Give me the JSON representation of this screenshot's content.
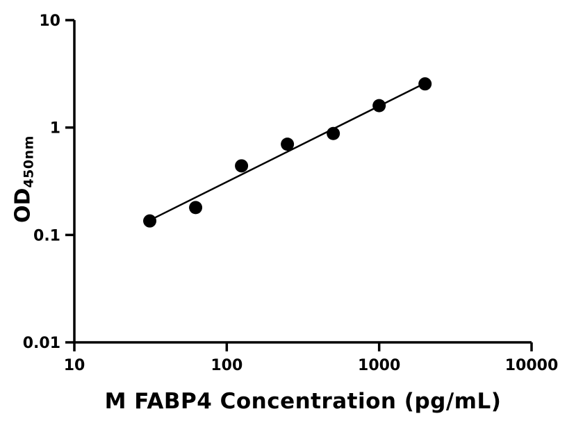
{
  "chart_data": {
    "type": "scatter",
    "title": "",
    "xlabel": "M FABP4 Concentration (pg/mL)",
    "ylabel_main": "OD",
    "ylabel_sub": "450nm",
    "x_scale": "log",
    "y_scale": "log",
    "xlim": [
      10,
      10000
    ],
    "ylim": [
      0.01,
      10
    ],
    "grid": false,
    "legend": "none",
    "x_ticks": [
      {
        "value": 10,
        "label": "10"
      },
      {
        "value": 100,
        "label": "100"
      },
      {
        "value": 1000,
        "label": "1000"
      },
      {
        "value": 10000,
        "label": "10000"
      }
    ],
    "y_ticks": [
      {
        "value": 0.01,
        "label": "0.01"
      },
      {
        "value": 0.1,
        "label": "0.1"
      },
      {
        "value": 1,
        "label": "1"
      },
      {
        "value": 10,
        "label": "10"
      }
    ],
    "points": {
      "x": [
        31.25,
        62.5,
        125,
        250,
        500,
        1000,
        2000
      ],
      "y": [
        0.135,
        0.18,
        0.44,
        0.7,
        0.88,
        1.6,
        2.55
      ]
    },
    "trend_line": {
      "x_start": 31.25,
      "y_start": 0.137,
      "x_end": 2000,
      "y_end": 2.59
    },
    "marker_color": "#000000",
    "line_color": "#000000",
    "axis_color": "#000000",
    "background_color": "#ffffff"
  }
}
